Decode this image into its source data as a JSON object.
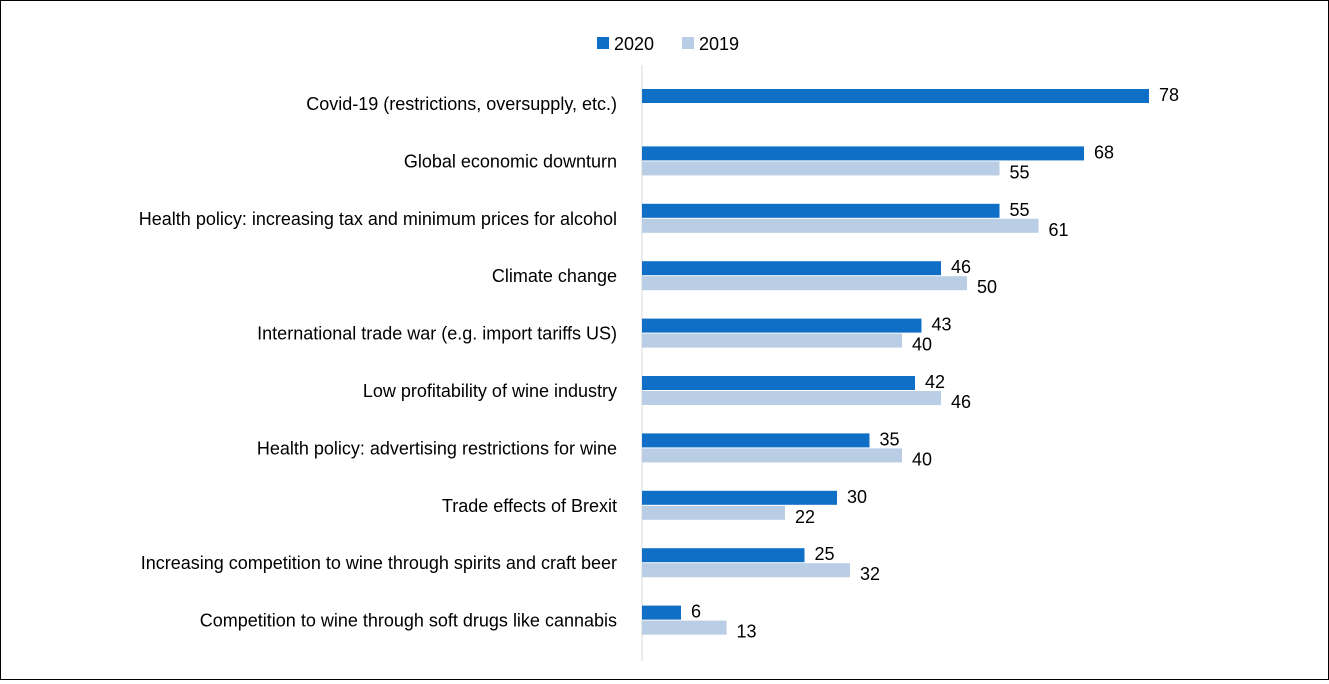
{
  "chart_data": {
    "type": "bar",
    "orientation": "horizontal",
    "categories": [
      "Covid-19 (restrictions, oversupply, etc.)",
      "Global economic downturn",
      "Health policy: increasing tax and minimum prices for alcohol",
      "Climate change",
      "International trade war (e.g. import tariffs US)",
      "Low profitability of wine industry",
      "Health policy: advertising restrictions for wine",
      "Trade effects of Brexit",
      "Increasing competition to wine through spirits and craft beer",
      "Competition to wine through soft drugs like cannabis"
    ],
    "series": [
      {
        "name": "2020",
        "color": "#0f6fc6",
        "values": [
          78,
          68,
          55,
          46,
          43,
          42,
          35,
          30,
          25,
          6
        ]
      },
      {
        "name": "2019",
        "color": "#b9cde5",
        "values": [
          null,
          55,
          61,
          50,
          40,
          46,
          40,
          22,
          32,
          13
        ]
      }
    ],
    "legend_position": "top",
    "grid": false
  }
}
